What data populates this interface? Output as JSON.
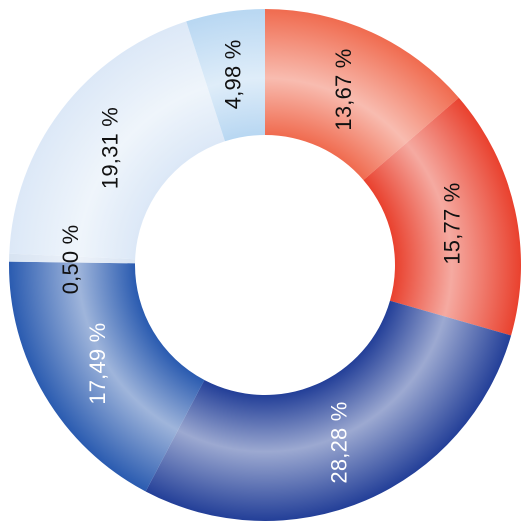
{
  "chart_data": {
    "type": "pie",
    "donut": true,
    "series": [
      {
        "values": [
          13.67,
          15.77,
          28.28,
          17.49,
          0.5,
          19.31,
          4.98
        ],
        "labels": [
          "13,67 %",
          "15,77 %",
          "28,28 %",
          "17,49 %",
          "0,50 %",
          "19,31 %",
          "4,98 %"
        ],
        "colors": [
          "#f06b4f",
          "#e9412e",
          "#233f98",
          "#2a5bb0",
          "#d7e3f2",
          "#dce8f7",
          "#b8d7f2"
        ]
      }
    ],
    "grid": false,
    "legend": "none"
  }
}
